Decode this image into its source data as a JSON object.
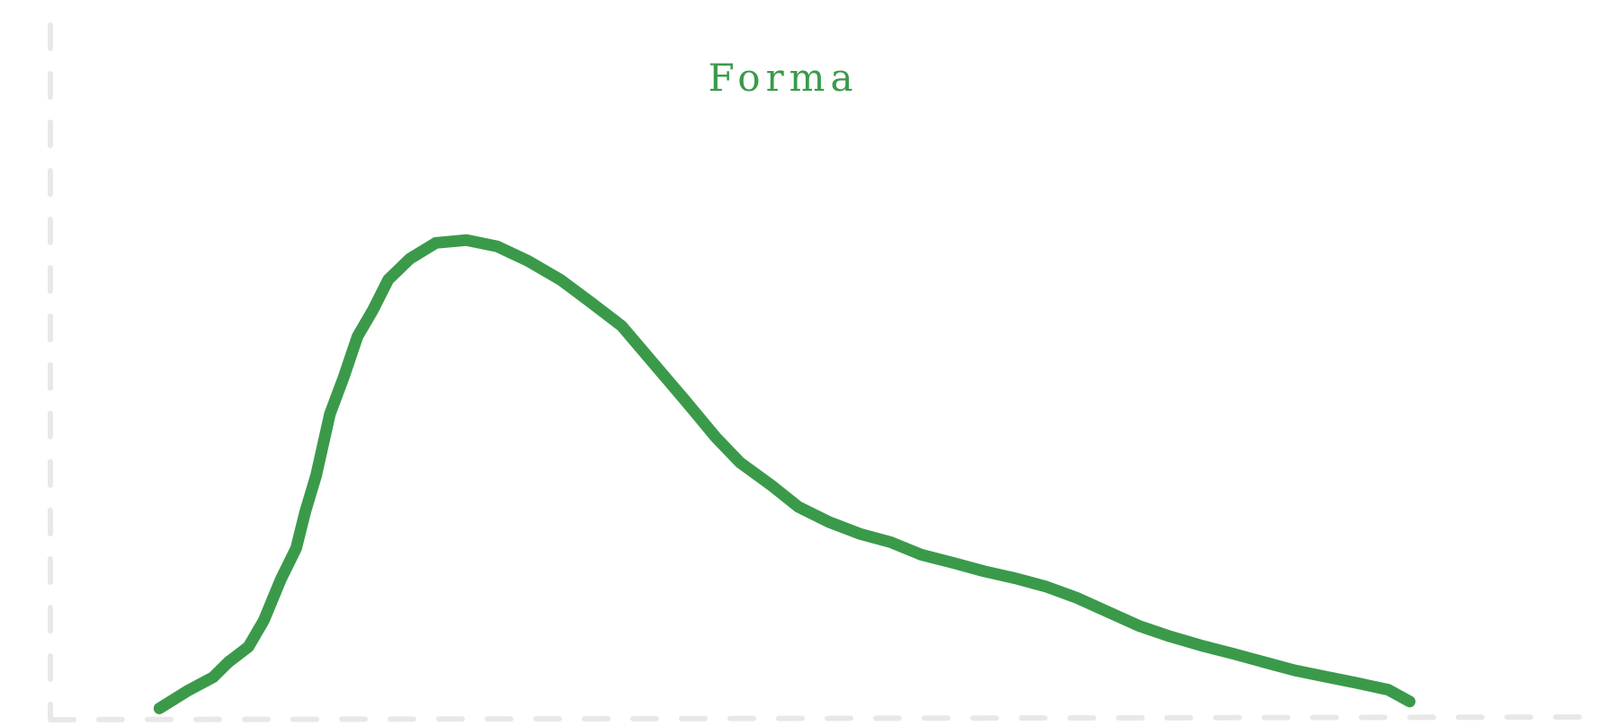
{
  "chart_data": {
    "type": "line",
    "title": "Forma",
    "color": "#3a9a4a",
    "xlim": [
      0,
      100
    ],
    "ylim": [
      0,
      100
    ],
    "x": [
      7.1,
      8.9,
      10.6,
      11.6,
      12.9,
      13.9,
      15.0,
      16.0,
      16.6,
      17.3,
      18.2,
      19.1,
      20.0,
      21.0,
      22.0,
      23.4,
      25.1,
      27.1,
      29.1,
      31.1,
      33.2,
      35.2,
      37.2,
      39.2,
      41.2,
      43.3,
      44.9,
      47.0,
      48.7,
      50.7,
      52.7,
      54.7,
      56.7,
      58.8,
      60.8,
      62.8,
      64.8,
      66.8,
      68.9,
      70.9,
      72.9,
      74.9,
      77.0,
      79.0,
      81.0,
      83.0,
      85.0,
      87.1,
      88.5
    ],
    "values": [
      1.5,
      4.0,
      6.0,
      8.2,
      10.4,
      14.2,
      20.1,
      24.6,
      29.9,
      35.1,
      44.0,
      49.3,
      55.2,
      59.0,
      63.4,
      66.4,
      68.7,
      69.1,
      68.2,
      66.1,
      63.4,
      60.1,
      56.7,
      51.5,
      46.3,
      40.7,
      37.0,
      33.6,
      30.6,
      28.4,
      26.7,
      25.5,
      23.7,
      22.5,
      21.3,
      20.3,
      19.1,
      17.5,
      15.4,
      13.4,
      11.9,
      10.6,
      9.4,
      8.2,
      7.0,
      6.1,
      5.2,
      4.2,
      2.5
    ]
  }
}
